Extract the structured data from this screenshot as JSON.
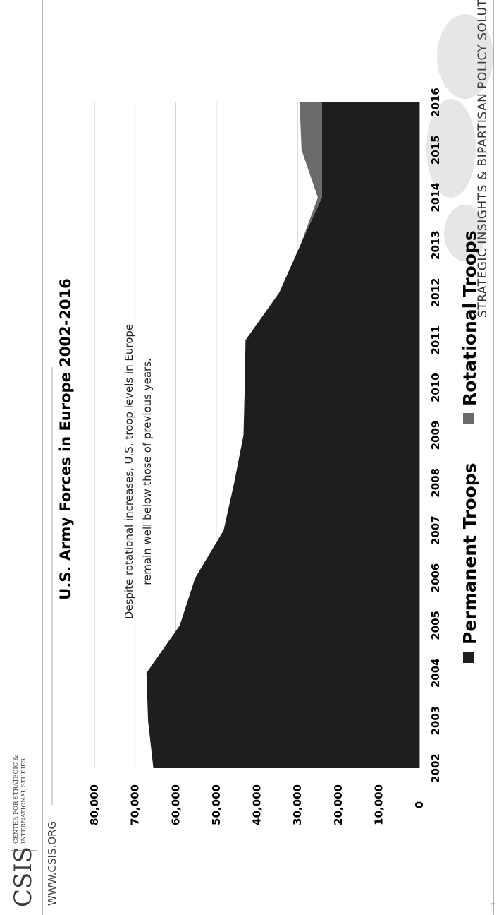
{
  "brand": {
    "logo_text": "CSIS",
    "org_line1": "CENTER FOR STRATEGIC &",
    "org_line2": "INTERNATIONAL STUDIES",
    "tagline": "STRATEGIC INSIGHTS & BIPARTISAN POLICY SOLUTIONS",
    "website": "WWW.CSIS.ORG",
    "page_number": "1"
  },
  "colors": {
    "permanent": "#1e1e1e",
    "rotational": "#6a6a6a",
    "gridline": "#c8c8c8",
    "rule": "#8a8a8a"
  },
  "chart_data": {
    "type": "area",
    "title": "U.S. Army Forces in Europe 2002-2016",
    "annotation": {
      "line1": "Despite rotational increases, U.S. troop levels in Europe",
      "line2": "remain well below those of previous years."
    },
    "categories": [
      "2002",
      "2003",
      "2004",
      "2005",
      "2006",
      "2007",
      "2008",
      "2009",
      "2010",
      "2011",
      "2012",
      "2013",
      "2014",
      "2015",
      "2016"
    ],
    "series": [
      {
        "name": "Permanent Troops",
        "values": [
          65500,
          66800,
          67200,
          59000,
          55200,
          48200,
          45600,
          43300,
          43000,
          42800,
          34500,
          29300,
          24000,
          24000,
          24000
        ]
      },
      {
        "name": "Rotational Troops",
        "values": [
          0,
          0,
          0,
          0,
          0,
          0,
          0,
          0,
          0,
          0,
          0,
          0,
          1000,
          5000,
          5500
        ]
      }
    ],
    "stacked": true,
    "ylim": [
      0,
      80000
    ],
    "yticks": [
      "0",
      "10,000",
      "20,000",
      "30,000",
      "40,000",
      "50,000",
      "60,000",
      "70,000",
      "80,000"
    ],
    "grid": true,
    "legend_position": "bottom",
    "orientation": "rotated 90° counter-clockwise"
  }
}
